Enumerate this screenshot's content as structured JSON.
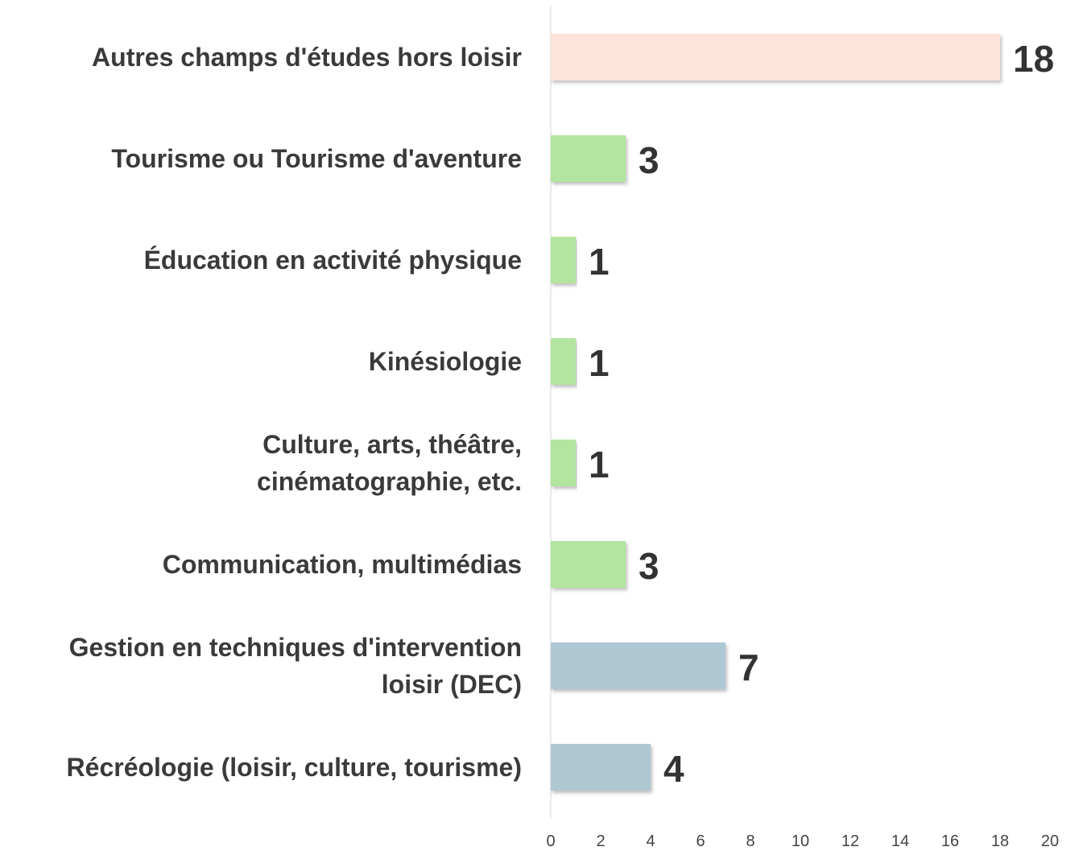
{
  "chart_data": {
    "type": "bar",
    "orientation": "horizontal",
    "categories": [
      "Autres champs d'études hors loisir",
      "Tourisme ou Tourisme d'aventure",
      "Éducation en activité physique",
      "Kinésiologie",
      "Culture, arts, théâtre,\ncinématographie, etc.",
      "Communication, multimédias",
      "Gestion en techniques d'intervention\nloisir (DEC)",
      "Récréologie (loisir, culture, tourisme)"
    ],
    "values": [
      18,
      3,
      1,
      1,
      1,
      3,
      7,
      4
    ],
    "colors": [
      "#fde3d8",
      "#b3e5a0",
      "#b3e5a0",
      "#b3e5a0",
      "#b3e5a0",
      "#b3e5a0",
      "#aec8d3",
      "#aec8d3"
    ],
    "xlim": [
      0,
      20
    ],
    "xticks": [
      0,
      2,
      4,
      6,
      8,
      10,
      12,
      14,
      16,
      18,
      20
    ],
    "grid": false
  }
}
